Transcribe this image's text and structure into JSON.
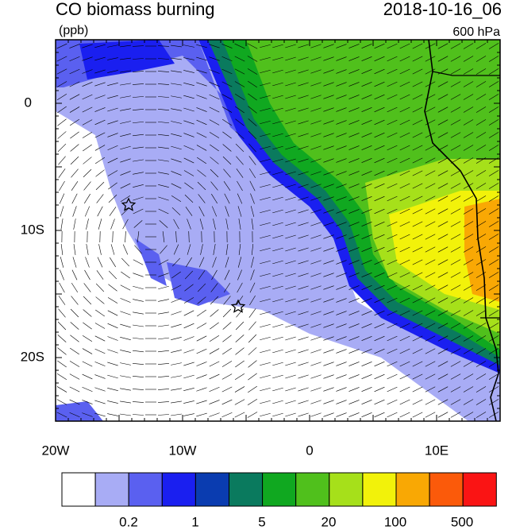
{
  "header": {
    "title": "CO biomass burning",
    "units": "(ppb)",
    "date": "2018-10-16_06",
    "level": "600 hPa"
  },
  "map": {
    "x_labels": [
      "20W",
      "10W",
      "0",
      "10E"
    ],
    "y_labels": [
      "0",
      "10S",
      "20S"
    ]
  },
  "colorbar": {
    "labels": [
      "0.2",
      "1",
      "5",
      "20",
      "100",
      "500"
    ]
  }
}
